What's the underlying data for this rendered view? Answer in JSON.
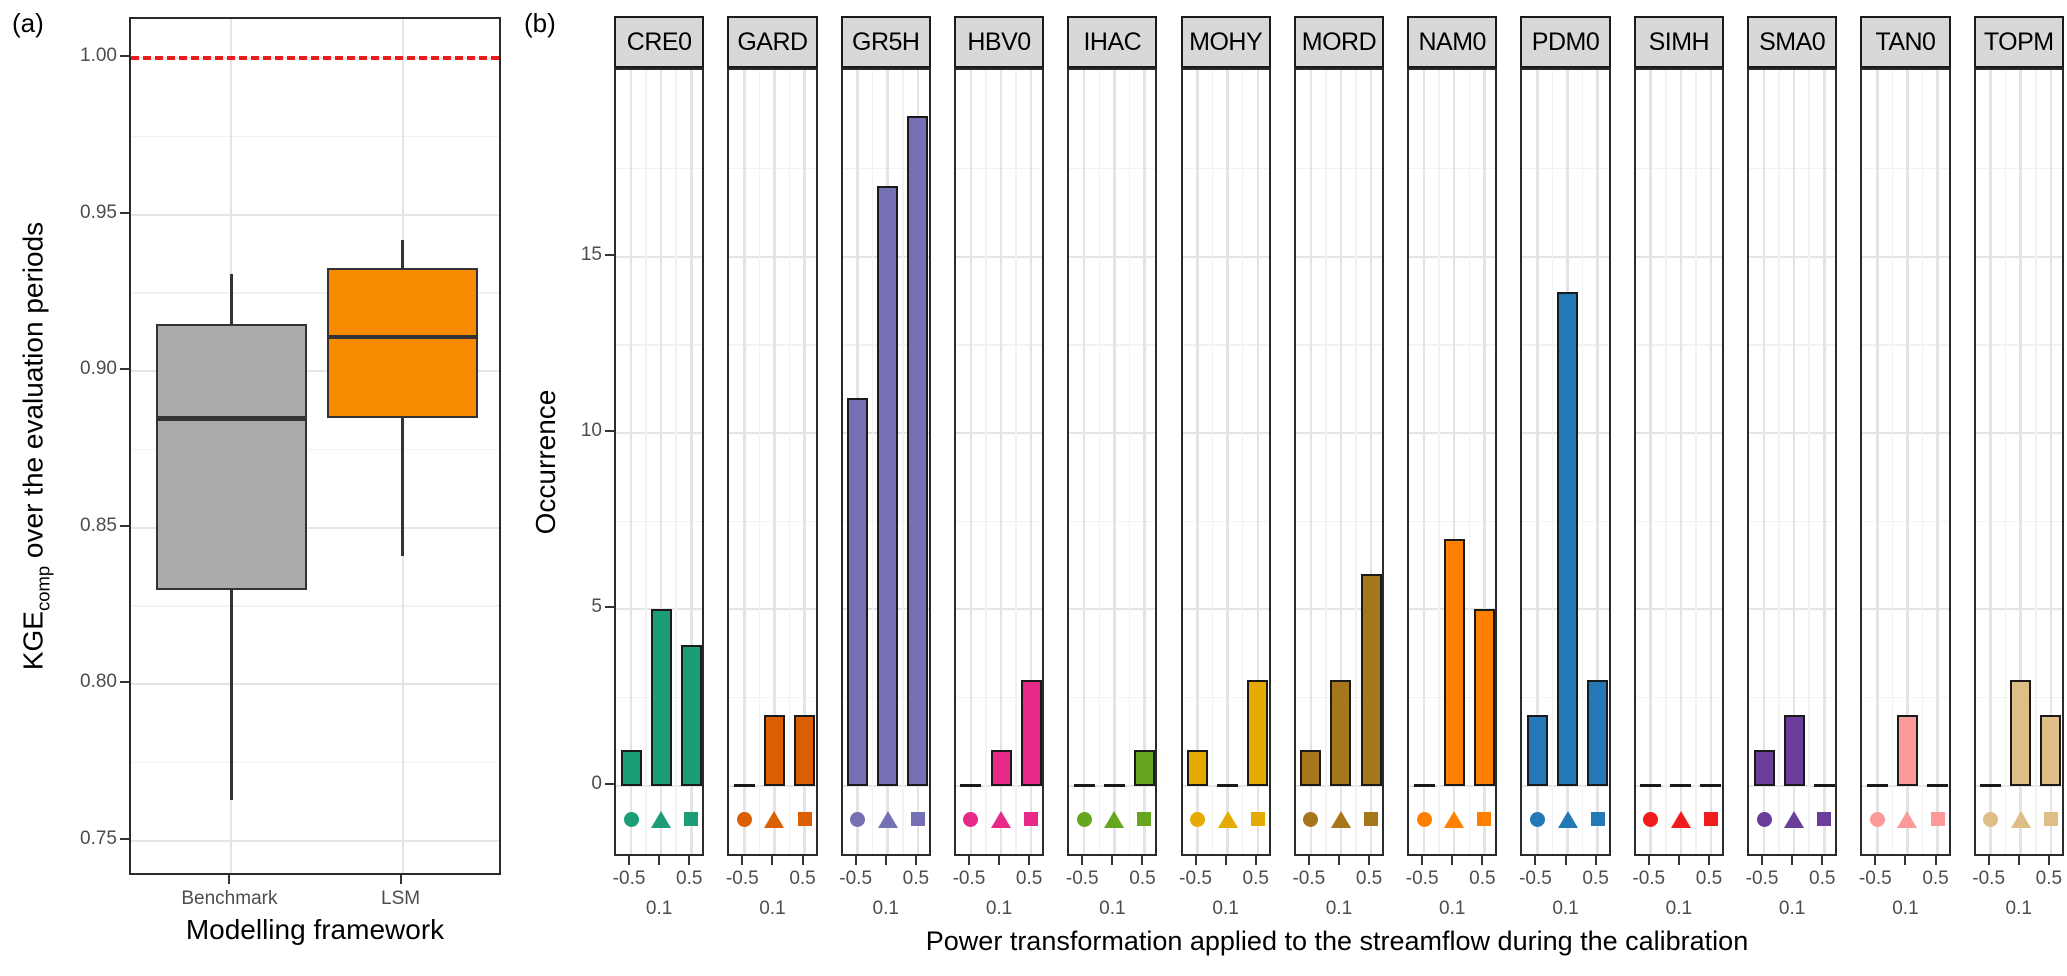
{
  "figure": {
    "panel_a_label": "(a)",
    "panel_b_label": "(b)"
  },
  "panel_a": {
    "y_title_pre": "KGE",
    "y_title_sub": "comp",
    "y_title_post": " over the evaluation periods"
  },
  "chart_data": [
    {
      "type": "boxplot",
      "panel": "a",
      "xlabel": "Modelling framework",
      "ylabel": "KGE_comp over the evaluation periods",
      "categories": [
        "Benchmark",
        "LSM"
      ],
      "series": [
        {
          "name": "Benchmark",
          "color": "#ababab",
          "whisker_low": 0.763,
          "q1": 0.83,
          "median": 0.885,
          "q3": 0.915,
          "whisker_high": 0.931
        },
        {
          "name": "LSM",
          "color": "#f88a00",
          "whisker_low": 0.841,
          "q1": 0.885,
          "median": 0.911,
          "q3": 0.933,
          "whisker_high": 0.942
        }
      ],
      "reference_line": {
        "y": 1.0,
        "style": "dashed",
        "color": "#ec1b1f"
      },
      "ylim": [
        0.7385,
        1.0125
      ],
      "yticks": [
        0.75,
        0.8,
        0.85,
        0.9,
        0.95,
        1.0
      ],
      "grid": true,
      "legend": "none"
    },
    {
      "type": "bar",
      "panel": "b",
      "xlabel": "Power transformation applied to the streamflow during the calibration",
      "ylabel": "Occurrence",
      "x_categories": [
        "-0.5",
        "0.1",
        "0.5"
      ],
      "yticks": [
        0,
        5,
        10,
        15
      ],
      "ylim": [
        -2.05,
        20.3
      ],
      "grid": true,
      "legend": "none",
      "marker_shapes": [
        "circle",
        "triangle",
        "square"
      ],
      "facets": [
        {
          "label": "CRE0",
          "color": "#1b9e77",
          "values": [
            1,
            5,
            4
          ]
        },
        {
          "label": "GARD",
          "color": "#d95f02",
          "values": [
            0,
            2,
            2
          ]
        },
        {
          "label": "GR5H",
          "color": "#7570b3",
          "values": [
            11,
            17,
            19
          ]
        },
        {
          "label": "HBV0",
          "color": "#e7298a",
          "values": [
            0,
            1,
            3
          ]
        },
        {
          "label": "IHAC",
          "color": "#66a61e",
          "values": [
            0,
            0,
            1
          ]
        },
        {
          "label": "MOHY",
          "color": "#e6ab02",
          "values": [
            1,
            0,
            3
          ]
        },
        {
          "label": "MORD",
          "color": "#a6761d",
          "values": [
            1,
            3,
            6
          ]
        },
        {
          "label": "NAM0",
          "color": "#ff7f00",
          "values": [
            0,
            7,
            5
          ]
        },
        {
          "label": "PDM0",
          "color": "#2279b5",
          "values": [
            2,
            14,
            3
          ]
        },
        {
          "label": "SIMH",
          "color": "#ee1c1c",
          "values": [
            0,
            0,
            0
          ]
        },
        {
          "label": "SMA0",
          "color": "#6a3d9a",
          "values": [
            1,
            2,
            0
          ]
        },
        {
          "label": "TAN0",
          "color": "#fb9a99",
          "values": [
            0,
            2,
            0
          ]
        },
        {
          "label": "TOPM",
          "color": "#debe87",
          "values": [
            0,
            3,
            2
          ]
        }
      ]
    }
  ]
}
